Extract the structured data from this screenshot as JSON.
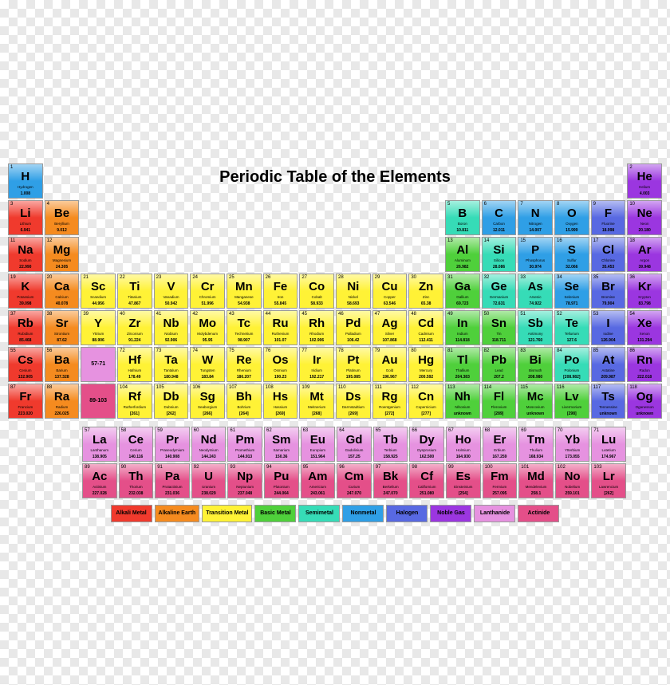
{
  "title": "Periodic Table of the Elements",
  "title_fontsize": 20,
  "categories": {
    "alkali": {
      "color": "#f03a2d",
      "label": "Alkali Metal"
    },
    "alkaline": {
      "color": "#f58b1f",
      "label": "Alkaline Earth"
    },
    "transition": {
      "color": "#fff236",
      "label": "Transition Metal"
    },
    "basic": {
      "color": "#4fd03b",
      "label": "Basic Metal"
    },
    "semimetal": {
      "color": "#36dcb7",
      "label": "Semimetal"
    },
    "nonmetal": {
      "color": "#2f9fe6",
      "label": "Nonmetal"
    },
    "halogen": {
      "color": "#5869e2",
      "label": "Halogen"
    },
    "noble": {
      "color": "#9b36e0",
      "label": "Noble Gas"
    },
    "lanthanide": {
      "color": "#e692e0",
      "label": "Lanthanide"
    },
    "actinide": {
      "color": "#e44f89",
      "label": "Actinide"
    }
  },
  "legend_order": [
    "alkali",
    "alkaline",
    "transition",
    "basic",
    "semimetal",
    "nonmetal",
    "halogen",
    "noble",
    "lanthanide",
    "actinide"
  ],
  "range_labels": {
    "lan": "57-71",
    "act": "89-103"
  },
  "elements": [
    {
      "n": 1,
      "s": "H",
      "name": "Hydrogen",
      "m": "1.008",
      "c": "nonmetal",
      "r": 1,
      "g": 1
    },
    {
      "n": 2,
      "s": "He",
      "name": "Helium",
      "m": "4.003",
      "c": "noble",
      "r": 1,
      "g": 18
    },
    {
      "n": 3,
      "s": "Li",
      "name": "Lithium",
      "m": "6.941",
      "c": "alkali",
      "r": 2,
      "g": 1
    },
    {
      "n": 4,
      "s": "Be",
      "name": "Beryllium",
      "m": "9.012",
      "c": "alkaline",
      "r": 2,
      "g": 2
    },
    {
      "n": 5,
      "s": "B",
      "name": "Boron",
      "m": "10.811",
      "c": "semimetal",
      "r": 2,
      "g": 13
    },
    {
      "n": 6,
      "s": "C",
      "name": "Carbon",
      "m": "12.011",
      "c": "nonmetal",
      "r": 2,
      "g": 14
    },
    {
      "n": 7,
      "s": "N",
      "name": "Nitrogen",
      "m": "14.007",
      "c": "nonmetal",
      "r": 2,
      "g": 15
    },
    {
      "n": 8,
      "s": "O",
      "name": "Oxygen",
      "m": "15.999",
      "c": "nonmetal",
      "r": 2,
      "g": 16
    },
    {
      "n": 9,
      "s": "F",
      "name": "Fluorine",
      "m": "18.998",
      "c": "halogen",
      "r": 2,
      "g": 17
    },
    {
      "n": 10,
      "s": "Ne",
      "name": "Neon",
      "m": "20.180",
      "c": "noble",
      "r": 2,
      "g": 18
    },
    {
      "n": 11,
      "s": "Na",
      "name": "Sodium",
      "m": "22.990",
      "c": "alkali",
      "r": 3,
      "g": 1
    },
    {
      "n": 12,
      "s": "Mg",
      "name": "Magnesium",
      "m": "24.305",
      "c": "alkaline",
      "r": 3,
      "g": 2
    },
    {
      "n": 13,
      "s": "Al",
      "name": "Aluminum",
      "m": "26.982",
      "c": "basic",
      "r": 3,
      "g": 13
    },
    {
      "n": 14,
      "s": "Si",
      "name": "Silicon",
      "m": "28.086",
      "c": "semimetal",
      "r": 3,
      "g": 14
    },
    {
      "n": 15,
      "s": "P",
      "name": "Phosphorus",
      "m": "30.974",
      "c": "nonmetal",
      "r": 3,
      "g": 15
    },
    {
      "n": 16,
      "s": "S",
      "name": "Sulfur",
      "m": "32.066",
      "c": "nonmetal",
      "r": 3,
      "g": 16
    },
    {
      "n": 17,
      "s": "Cl",
      "name": "Chlorine",
      "m": "35.453",
      "c": "halogen",
      "r": 3,
      "g": 17
    },
    {
      "n": 18,
      "s": "Ar",
      "name": "Argon",
      "m": "39.948",
      "c": "noble",
      "r": 3,
      "g": 18
    },
    {
      "n": 19,
      "s": "K",
      "name": "Potassium",
      "m": "39.098",
      "c": "alkali",
      "r": 4,
      "g": 1
    },
    {
      "n": 20,
      "s": "Ca",
      "name": "Calcium",
      "m": "40.078",
      "c": "alkaline",
      "r": 4,
      "g": 2
    },
    {
      "n": 21,
      "s": "Sc",
      "name": "Scandium",
      "m": "44.956",
      "c": "transition",
      "r": 4,
      "g": 3
    },
    {
      "n": 22,
      "s": "Ti",
      "name": "Titanium",
      "m": "47.867",
      "c": "transition",
      "r": 4,
      "g": 4
    },
    {
      "n": 23,
      "s": "V",
      "name": "Vanadium",
      "m": "50.942",
      "c": "transition",
      "r": 4,
      "g": 5
    },
    {
      "n": 24,
      "s": "Cr",
      "name": "Chromium",
      "m": "51.996",
      "c": "transition",
      "r": 4,
      "g": 6
    },
    {
      "n": 25,
      "s": "Mn",
      "name": "Manganese",
      "m": "54.938",
      "c": "transition",
      "r": 4,
      "g": 7
    },
    {
      "n": 26,
      "s": "Fe",
      "name": "Iron",
      "m": "55.845",
      "c": "transition",
      "r": 4,
      "g": 8
    },
    {
      "n": 27,
      "s": "Co",
      "name": "Cobalt",
      "m": "58.933",
      "c": "transition",
      "r": 4,
      "g": 9
    },
    {
      "n": 28,
      "s": "Ni",
      "name": "Nickel",
      "m": "58.693",
      "c": "transition",
      "r": 4,
      "g": 10
    },
    {
      "n": 29,
      "s": "Cu",
      "name": "Copper",
      "m": "63.546",
      "c": "transition",
      "r": 4,
      "g": 11
    },
    {
      "n": 30,
      "s": "Zn",
      "name": "Zinc",
      "m": "65.38",
      "c": "transition",
      "r": 4,
      "g": 12
    },
    {
      "n": 31,
      "s": "Ga",
      "name": "Gallium",
      "m": "69.723",
      "c": "basic",
      "r": 4,
      "g": 13
    },
    {
      "n": 32,
      "s": "Ge",
      "name": "Germanium",
      "m": "72.631",
      "c": "semimetal",
      "r": 4,
      "g": 14
    },
    {
      "n": 33,
      "s": "As",
      "name": "Arsenic",
      "m": "74.922",
      "c": "semimetal",
      "r": 4,
      "g": 15
    },
    {
      "n": 34,
      "s": "Se",
      "name": "Selenium",
      "m": "78.971",
      "c": "nonmetal",
      "r": 4,
      "g": 16
    },
    {
      "n": 35,
      "s": "Br",
      "name": "Bromine",
      "m": "79.904",
      "c": "halogen",
      "r": 4,
      "g": 17
    },
    {
      "n": 36,
      "s": "Kr",
      "name": "Krypton",
      "m": "83.798",
      "c": "noble",
      "r": 4,
      "g": 18
    },
    {
      "n": 37,
      "s": "Rb",
      "name": "Rubidium",
      "m": "85.468",
      "c": "alkali",
      "r": 5,
      "g": 1
    },
    {
      "n": 38,
      "s": "Sr",
      "name": "Strontium",
      "m": "87.62",
      "c": "alkaline",
      "r": 5,
      "g": 2
    },
    {
      "n": 39,
      "s": "Y",
      "name": "Yttrium",
      "m": "88.906",
      "c": "transition",
      "r": 5,
      "g": 3
    },
    {
      "n": 40,
      "s": "Zr",
      "name": "Zirconium",
      "m": "91.224",
      "c": "transition",
      "r": 5,
      "g": 4
    },
    {
      "n": 41,
      "s": "Nb",
      "name": "Niobium",
      "m": "92.906",
      "c": "transition",
      "r": 5,
      "g": 5
    },
    {
      "n": 42,
      "s": "Mo",
      "name": "Molybdenum",
      "m": "95.95",
      "c": "transition",
      "r": 5,
      "g": 6
    },
    {
      "n": 43,
      "s": "Tc",
      "name": "Technetium",
      "m": "98.907",
      "c": "transition",
      "r": 5,
      "g": 7
    },
    {
      "n": 44,
      "s": "Ru",
      "name": "Ruthenium",
      "m": "101.07",
      "c": "transition",
      "r": 5,
      "g": 8
    },
    {
      "n": 45,
      "s": "Rh",
      "name": "Rhodium",
      "m": "102.906",
      "c": "transition",
      "r": 5,
      "g": 9
    },
    {
      "n": 46,
      "s": "Pd",
      "name": "Palladium",
      "m": "106.42",
      "c": "transition",
      "r": 5,
      "g": 10
    },
    {
      "n": 47,
      "s": "Ag",
      "name": "Silver",
      "m": "107.868",
      "c": "transition",
      "r": 5,
      "g": 11
    },
    {
      "n": 48,
      "s": "Cd",
      "name": "Cadmium",
      "m": "112.411",
      "c": "transition",
      "r": 5,
      "g": 12
    },
    {
      "n": 49,
      "s": "In",
      "name": "Indium",
      "m": "114.818",
      "c": "basic",
      "r": 5,
      "g": 13
    },
    {
      "n": 50,
      "s": "Sn",
      "name": "Tin",
      "m": "118.711",
      "c": "basic",
      "r": 5,
      "g": 14
    },
    {
      "n": 51,
      "s": "Sb",
      "name": "Antimony",
      "m": "121.760",
      "c": "semimetal",
      "r": 5,
      "g": 15
    },
    {
      "n": 52,
      "s": "Te",
      "name": "Tellurium",
      "m": "127.6",
      "c": "semimetal",
      "r": 5,
      "g": 16
    },
    {
      "n": 53,
      "s": "I",
      "name": "Iodine",
      "m": "126.904",
      "c": "halogen",
      "r": 5,
      "g": 17
    },
    {
      "n": 54,
      "s": "Xe",
      "name": "Xenon",
      "m": "131.294",
      "c": "noble",
      "r": 5,
      "g": 18
    },
    {
      "n": 55,
      "s": "Cs",
      "name": "Cesium",
      "m": "132.905",
      "c": "alkali",
      "r": 6,
      "g": 1
    },
    {
      "n": 56,
      "s": "Ba",
      "name": "Barium",
      "m": "137.328",
      "c": "alkaline",
      "r": 6,
      "g": 2
    },
    {
      "n": 72,
      "s": "Hf",
      "name": "Hafnium",
      "m": "178.49",
      "c": "transition",
      "r": 6,
      "g": 4
    },
    {
      "n": 73,
      "s": "Ta",
      "name": "Tantalum",
      "m": "180.948",
      "c": "transition",
      "r": 6,
      "g": 5
    },
    {
      "n": 74,
      "s": "W",
      "name": "Tungsten",
      "m": "183.84",
      "c": "transition",
      "r": 6,
      "g": 6
    },
    {
      "n": 75,
      "s": "Re",
      "name": "Rhenium",
      "m": "186.207",
      "c": "transition",
      "r": 6,
      "g": 7
    },
    {
      "n": 76,
      "s": "Os",
      "name": "Osmium",
      "m": "190.23",
      "c": "transition",
      "r": 6,
      "g": 8
    },
    {
      "n": 77,
      "s": "Ir",
      "name": "Iridium",
      "m": "192.217",
      "c": "transition",
      "r": 6,
      "g": 9
    },
    {
      "n": 78,
      "s": "Pt",
      "name": "Platinum",
      "m": "195.085",
      "c": "transition",
      "r": 6,
      "g": 10
    },
    {
      "n": 79,
      "s": "Au",
      "name": "Gold",
      "m": "196.967",
      "c": "transition",
      "r": 6,
      "g": 11
    },
    {
      "n": 80,
      "s": "Hg",
      "name": "Mercury",
      "m": "200.592",
      "c": "transition",
      "r": 6,
      "g": 12
    },
    {
      "n": 81,
      "s": "Tl",
      "name": "Thallium",
      "m": "204.383",
      "c": "basic",
      "r": 6,
      "g": 13
    },
    {
      "n": 82,
      "s": "Pb",
      "name": "Lead",
      "m": "207.2",
      "c": "basic",
      "r": 6,
      "g": 14
    },
    {
      "n": 83,
      "s": "Bi",
      "name": "Bismuth",
      "m": "208.980",
      "c": "basic",
      "r": 6,
      "g": 15
    },
    {
      "n": 84,
      "s": "Po",
      "name": "Polonium",
      "m": "[208.982]",
      "c": "semimetal",
      "r": 6,
      "g": 16
    },
    {
      "n": 85,
      "s": "At",
      "name": "Astatine",
      "m": "209.987",
      "c": "halogen",
      "r": 6,
      "g": 17
    },
    {
      "n": 86,
      "s": "Rn",
      "name": "Radon",
      "m": "222.018",
      "c": "noble",
      "r": 6,
      "g": 18
    },
    {
      "n": 87,
      "s": "Fr",
      "name": "Francium",
      "m": "223.020",
      "c": "alkali",
      "r": 7,
      "g": 1
    },
    {
      "n": 88,
      "s": "Ra",
      "name": "Radium",
      "m": "226.025",
      "c": "alkaline",
      "r": 7,
      "g": 2
    },
    {
      "n": 104,
      "s": "Rf",
      "name": "Rutherfordium",
      "m": "[261]",
      "c": "transition",
      "r": 7,
      "g": 4
    },
    {
      "n": 105,
      "s": "Db",
      "name": "Dubnium",
      "m": "[262]",
      "c": "transition",
      "r": 7,
      "g": 5
    },
    {
      "n": 106,
      "s": "Sg",
      "name": "Seaborgium",
      "m": "[266]",
      "c": "transition",
      "r": 7,
      "g": 6
    },
    {
      "n": 107,
      "s": "Bh",
      "name": "Bohrium",
      "m": "[264]",
      "c": "transition",
      "r": 7,
      "g": 7
    },
    {
      "n": 108,
      "s": "Hs",
      "name": "Hassium",
      "m": "[269]",
      "c": "transition",
      "r": 7,
      "g": 8
    },
    {
      "n": 109,
      "s": "Mt",
      "name": "Meitnerium",
      "m": "[268]",
      "c": "transition",
      "r": 7,
      "g": 9
    },
    {
      "n": 110,
      "s": "Ds",
      "name": "Darmstadtium",
      "m": "[269]",
      "c": "transition",
      "r": 7,
      "g": 10
    },
    {
      "n": 111,
      "s": "Rg",
      "name": "Roentgenium",
      "m": "[272]",
      "c": "transition",
      "r": 7,
      "g": 11
    },
    {
      "n": 112,
      "s": "Cn",
      "name": "Copernicium",
      "m": "[277]",
      "c": "transition",
      "r": 7,
      "g": 12
    },
    {
      "n": 113,
      "s": "Nh",
      "name": "Nihonium",
      "m": "unknown",
      "c": "basic",
      "r": 7,
      "g": 13
    },
    {
      "n": 114,
      "s": "Fl",
      "name": "Flerovium",
      "m": "[289]",
      "c": "basic",
      "r": 7,
      "g": 14
    },
    {
      "n": 115,
      "s": "Mc",
      "name": "Moscovium",
      "m": "unknown",
      "c": "basic",
      "r": 7,
      "g": 15
    },
    {
      "n": 116,
      "s": "Lv",
      "name": "Livermorium",
      "m": "[298]",
      "c": "basic",
      "r": 7,
      "g": 16
    },
    {
      "n": 117,
      "s": "Ts",
      "name": "Tennessine",
      "m": "unknown",
      "c": "halogen",
      "r": 7,
      "g": 17
    },
    {
      "n": 118,
      "s": "Og",
      "name": "Oganesson",
      "m": "unknown",
      "c": "noble",
      "r": 7,
      "g": 18
    }
  ],
  "fblock": [
    {
      "n": 57,
      "s": "La",
      "name": "Lanthanum",
      "m": "138.905",
      "c": "lanthanide"
    },
    {
      "n": 58,
      "s": "Ce",
      "name": "Cerium",
      "m": "140.116",
      "c": "lanthanide"
    },
    {
      "n": 59,
      "s": "Pr",
      "name": "Praseodymium",
      "m": "140.908",
      "c": "lanthanide"
    },
    {
      "n": 60,
      "s": "Nd",
      "name": "Neodymium",
      "m": "144.243",
      "c": "lanthanide"
    },
    {
      "n": 61,
      "s": "Pm",
      "name": "Promethium",
      "m": "144.913",
      "c": "lanthanide"
    },
    {
      "n": 62,
      "s": "Sm",
      "name": "Samarium",
      "m": "150.36",
      "c": "lanthanide"
    },
    {
      "n": 63,
      "s": "Eu",
      "name": "Europium",
      "m": "151.964",
      "c": "lanthanide"
    },
    {
      "n": 64,
      "s": "Gd",
      "name": "Gadolinium",
      "m": "157.25",
      "c": "lanthanide"
    },
    {
      "n": 65,
      "s": "Tb",
      "name": "Terbium",
      "m": "158.925",
      "c": "lanthanide"
    },
    {
      "n": 66,
      "s": "Dy",
      "name": "Dysprosium",
      "m": "162.500",
      "c": "lanthanide"
    },
    {
      "n": 67,
      "s": "Ho",
      "name": "Holmium",
      "m": "164.930",
      "c": "lanthanide"
    },
    {
      "n": 68,
      "s": "Er",
      "name": "Erbium",
      "m": "167.259",
      "c": "lanthanide"
    },
    {
      "n": 69,
      "s": "Tm",
      "name": "Thulium",
      "m": "168.934",
      "c": "lanthanide"
    },
    {
      "n": 70,
      "s": "Yb",
      "name": "Ytterbium",
      "m": "173.055",
      "c": "lanthanide"
    },
    {
      "n": 71,
      "s": "Lu",
      "name": "Lutetium",
      "m": "174.967",
      "c": "lanthanide"
    },
    {
      "n": 89,
      "s": "Ac",
      "name": "Actinium",
      "m": "227.028",
      "c": "actinide"
    },
    {
      "n": 90,
      "s": "Th",
      "name": "Thorium",
      "m": "232.038",
      "c": "actinide"
    },
    {
      "n": 91,
      "s": "Pa",
      "name": "Protactinium",
      "m": "231.036",
      "c": "actinide"
    },
    {
      "n": 92,
      "s": "U",
      "name": "Uranium",
      "m": "238.029",
      "c": "actinide"
    },
    {
      "n": 93,
      "s": "Np",
      "name": "Neptunium",
      "m": "237.048",
      "c": "actinide"
    },
    {
      "n": 94,
      "s": "Pu",
      "name": "Plutonium",
      "m": "244.064",
      "c": "actinide"
    },
    {
      "n": 95,
      "s": "Am",
      "name": "Americium",
      "m": "243.061",
      "c": "actinide"
    },
    {
      "n": 96,
      "s": "Cm",
      "name": "Curium",
      "m": "247.070",
      "c": "actinide"
    },
    {
      "n": 97,
      "s": "Bk",
      "name": "Berkelium",
      "m": "247.070",
      "c": "actinide"
    },
    {
      "n": 98,
      "s": "Cf",
      "name": "Californium",
      "m": "251.080",
      "c": "actinide"
    },
    {
      "n": 99,
      "s": "Es",
      "name": "Einsteinium",
      "m": "[254]",
      "c": "actinide"
    },
    {
      "n": 100,
      "s": "Fm",
      "name": "Fermium",
      "m": "257.095",
      "c": "actinide"
    },
    {
      "n": 101,
      "s": "Md",
      "name": "Mendelevium",
      "m": "258.1",
      "c": "actinide"
    },
    {
      "n": 102,
      "s": "No",
      "name": "Nobelium",
      "m": "259.101",
      "c": "actinide"
    },
    {
      "n": 103,
      "s": "Lr",
      "name": "Lawrencium",
      "m": "[262]",
      "c": "actinide"
    }
  ]
}
